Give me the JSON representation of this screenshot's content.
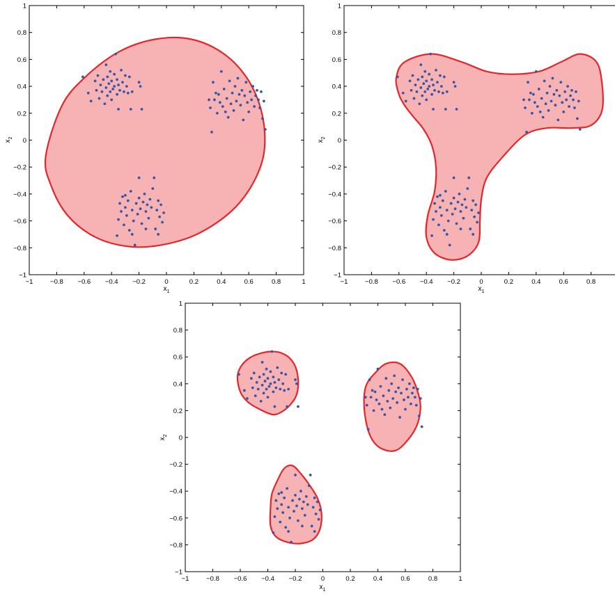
{
  "colors": {
    "region_fill": "#f7b2b4",
    "region_stroke": "#e4262b",
    "point": "#3a55a8"
  },
  "clusters": [
    {
      "name": "upper-left",
      "points": [
        [
          -0.61,
          0.47
        ],
        [
          -0.57,
          0.35
        ],
        [
          -0.55,
          0.29
        ],
        [
          -0.52,
          0.44
        ],
        [
          -0.51,
          0.37
        ],
        [
          -0.5,
          0.48
        ],
        [
          -0.49,
          0.31
        ],
        [
          -0.48,
          0.41
        ],
        [
          -0.47,
          0.36
        ],
        [
          -0.46,
          0.45
        ],
        [
          -0.45,
          0.27
        ],
        [
          -0.44,
          0.39
        ],
        [
          -0.43,
          0.33
        ],
        [
          -0.43,
          0.47
        ],
        [
          -0.42,
          0.42
        ],
        [
          -0.41,
          0.36
        ],
        [
          -0.4,
          0.44
        ],
        [
          -0.4,
          0.3
        ],
        [
          -0.39,
          0.38
        ],
        [
          -0.38,
          0.49
        ],
        [
          -0.38,
          0.4
        ],
        [
          -0.37,
          0.64
        ],
        [
          -0.36,
          0.34
        ],
        [
          -0.36,
          0.45
        ],
        [
          -0.35,
          0.41
        ],
        [
          -0.35,
          0.23
        ],
        [
          -0.34,
          0.37
        ],
        [
          -0.33,
          0.52
        ],
        [
          -0.32,
          0.43
        ],
        [
          -0.31,
          0.36
        ],
        [
          -0.3,
          0.48
        ],
        [
          -0.29,
          0.4
        ],
        [
          -0.28,
          0.35
        ],
        [
          -0.27,
          0.47
        ],
        [
          -0.26,
          0.23
        ],
        [
          -0.25,
          0.36
        ],
        [
          -0.2,
          0.43
        ],
        [
          -0.19,
          0.4
        ],
        [
          -0.18,
          0.23
        ],
        [
          -0.44,
          0.56
        ],
        [
          -0.41,
          0.51
        ]
      ]
    },
    {
      "name": "upper-right",
      "points": [
        [
          0.31,
          0.3
        ],
        [
          0.32,
          0.24
        ],
        [
          0.33,
          0.06
        ],
        [
          0.34,
          0.43
        ],
        [
          0.35,
          0.3
        ],
        [
          0.37,
          0.2
        ],
        [
          0.38,
          0.34
        ],
        [
          0.39,
          0.28
        ],
        [
          0.4,
          0.51
        ],
        [
          0.41,
          0.25
        ],
        [
          0.42,
          0.38
        ],
        [
          0.43,
          0.21
        ],
        [
          0.44,
          0.31
        ],
        [
          0.45,
          0.17
        ],
        [
          0.46,
          0.44
        ],
        [
          0.47,
          0.27
        ],
        [
          0.48,
          0.35
        ],
        [
          0.49,
          0.22
        ],
        [
          0.5,
          0.4
        ],
        [
          0.51,
          0.29
        ],
        [
          0.52,
          0.46
        ],
        [
          0.53,
          0.34
        ],
        [
          0.54,
          0.26
        ],
        [
          0.55,
          0.37
        ],
        [
          0.56,
          0.15
        ],
        [
          0.57,
          0.33
        ],
        [
          0.58,
          0.43
        ],
        [
          0.59,
          0.28
        ],
        [
          0.6,
          0.21
        ],
        [
          0.61,
          0.36
        ],
        [
          0.62,
          0.3
        ],
        [
          0.63,
          0.4
        ],
        [
          0.64,
          0.25
        ],
        [
          0.65,
          0.33
        ],
        [
          0.66,
          0.37
        ],
        [
          0.67,
          0.3
        ],
        [
          0.68,
          0.24
        ],
        [
          0.69,
          0.36
        ],
        [
          0.7,
          0.16
        ],
        [
          0.71,
          0.29
        ],
        [
          0.72,
          0.08
        ],
        [
          0.36,
          0.35
        ]
      ]
    },
    {
      "name": "bottom",
      "points": [
        [
          -0.36,
          -0.71
        ],
        [
          -0.35,
          -0.59
        ],
        [
          -0.34,
          -0.47
        ],
        [
          -0.33,
          -0.53
        ],
        [
          -0.32,
          -0.42
        ],
        [
          -0.31,
          -0.63
        ],
        [
          -0.3,
          -0.5
        ],
        [
          -0.29,
          -0.56
        ],
        [
          -0.28,
          -0.45
        ],
        [
          -0.27,
          -0.67
        ],
        [
          -0.26,
          -0.38
        ],
        [
          -0.25,
          -0.52
        ],
        [
          -0.24,
          -0.6
        ],
        [
          -0.23,
          -0.78
        ],
        [
          -0.22,
          -0.47
        ],
        [
          -0.21,
          -0.55
        ],
        [
          -0.2,
          -0.28
        ],
        [
          -0.2,
          -0.43
        ],
        [
          -0.19,
          -0.51
        ],
        [
          -0.18,
          -0.62
        ],
        [
          -0.17,
          -0.46
        ],
        [
          -0.16,
          -0.4
        ],
        [
          -0.15,
          -0.53
        ],
        [
          -0.14,
          -0.48
        ],
        [
          -0.13,
          -0.58
        ],
        [
          -0.12,
          -0.44
        ],
        [
          -0.11,
          -0.5
        ],
        [
          -0.1,
          -0.36
        ],
        [
          -0.09,
          -0.28
        ],
        [
          -0.08,
          -0.66
        ],
        [
          -0.07,
          -0.52
        ],
        [
          -0.06,
          -0.7
        ],
        [
          -0.05,
          -0.57
        ],
        [
          -0.04,
          -0.48
        ],
        [
          -0.03,
          -0.61
        ],
        [
          -0.02,
          -0.54
        ],
        [
          -0.25,
          -0.7
        ],
        [
          -0.15,
          -0.66
        ],
        [
          -0.3,
          -0.41
        ],
        [
          -0.06,
          -0.45
        ]
      ]
    }
  ],
  "chart_data": [
    {
      "type": "scatter",
      "panel": "top-left",
      "xlabel": "x",
      "xlabel_sub": "1",
      "ylabel": "x",
      "ylabel_sub": "2",
      "xlim": [
        -1,
        1
      ],
      "ylim": [
        -1,
        1
      ],
      "x_ticks": [
        "−1",
        "−0.8",
        "−0.6",
        "−0.4",
        "−0.2",
        "0",
        "0.2",
        "0.4",
        "0.6",
        "0.8",
        "1"
      ],
      "y_ticks": [
        "−1",
        "−0.8",
        "−0.6",
        "−0.4",
        "−0.2",
        "0",
        "0.2",
        "0.4",
        "0.6",
        "0.8",
        "1"
      ],
      "region": {
        "shape": "ellipse",
        "boundary": [
          [
            -0.88,
            -0.12
          ],
          [
            -0.84,
            -0.34
          ],
          [
            -0.72,
            -0.56
          ],
          [
            -0.52,
            -0.72
          ],
          [
            -0.28,
            -0.79
          ],
          [
            -0.04,
            -0.78
          ],
          [
            0.22,
            -0.7
          ],
          [
            0.46,
            -0.54
          ],
          [
            0.62,
            -0.34
          ],
          [
            0.71,
            -0.1
          ],
          [
            0.7,
            0.18
          ],
          [
            0.6,
            0.44
          ],
          [
            0.42,
            0.64
          ],
          [
            0.18,
            0.75
          ],
          [
            -0.08,
            0.75
          ],
          [
            -0.34,
            0.66
          ],
          [
            -0.58,
            0.48
          ],
          [
            -0.76,
            0.26
          ]
        ]
      }
    },
    {
      "type": "scatter",
      "panel": "top-right",
      "xlabel": "x",
      "xlabel_sub": "1",
      "ylabel": "x",
      "ylabel_sub": "2",
      "xlim": [
        -1,
        1
      ],
      "ylim": [
        -1,
        1
      ],
      "x_ticks": [
        "−1",
        "−0.8",
        "−0.6",
        "−0.4",
        "−0.2",
        "0",
        "0.2",
        "0.4",
        "0.6",
        "0.8"
      ],
      "y_ticks": [
        "−1",
        "−0.8",
        "−0.6",
        "−0.4",
        "−0.2",
        "0",
        "0.2",
        "0.4",
        "0.6",
        "0.8",
        "1"
      ],
      "region": {
        "shape": "three-lobed",
        "boundary": [
          [
            -0.62,
            0.46
          ],
          [
            -0.6,
            0.34
          ],
          [
            -0.56,
            0.26
          ],
          [
            -0.5,
            0.18
          ],
          [
            -0.42,
            0.08
          ],
          [
            -0.36,
            -0.04
          ],
          [
            -0.33,
            -0.2
          ],
          [
            -0.34,
            -0.38
          ],
          [
            -0.39,
            -0.56
          ],
          [
            -0.4,
            -0.72
          ],
          [
            -0.34,
            -0.84
          ],
          [
            -0.22,
            -0.89
          ],
          [
            -0.1,
            -0.86
          ],
          [
            -0.02,
            -0.76
          ],
          [
            -0.01,
            -0.6
          ],
          [
            0.0,
            -0.44
          ],
          [
            0.04,
            -0.28
          ],
          [
            0.16,
            -0.12
          ],
          [
            0.32,
            0.04
          ],
          [
            0.48,
            0.09
          ],
          [
            0.66,
            0.09
          ],
          [
            0.8,
            0.11
          ],
          [
            0.88,
            0.22
          ],
          [
            0.88,
            0.42
          ],
          [
            0.84,
            0.58
          ],
          [
            0.72,
            0.64
          ],
          [
            0.58,
            0.58
          ],
          [
            0.42,
            0.51
          ],
          [
            0.22,
            0.49
          ],
          [
            0.04,
            0.51
          ],
          [
            -0.14,
            0.58
          ],
          [
            -0.36,
            0.64
          ],
          [
            -0.56,
            0.58
          ]
        ]
      }
    },
    {
      "type": "scatter",
      "panel": "bottom",
      "xlabel": "x",
      "xlabel_sub": "1",
      "ylabel": "x",
      "ylabel_sub": "2",
      "xlim": [
        -1,
        1
      ],
      "ylim": [
        -1,
        1
      ],
      "x_ticks": [
        "−1",
        "−0.8",
        "−0.6",
        "−0.4",
        "−0.2",
        "0",
        "0.2",
        "0.4",
        "0.6",
        "0.8",
        "1"
      ],
      "y_ticks": [
        "−1",
        "−0.8",
        "−0.6",
        "−0.4",
        "−0.2",
        "0",
        "0.2",
        "0.4",
        "0.6",
        "0.8",
        "1"
      ],
      "regions": [
        {
          "shape": "blob-upper-left",
          "boundary": [
            [
              -0.62,
              0.46
            ],
            [
              -0.6,
              0.34
            ],
            [
              -0.54,
              0.26
            ],
            [
              -0.44,
              0.2
            ],
            [
              -0.36,
              0.17
            ],
            [
              -0.3,
              0.19
            ],
            [
              -0.24,
              0.24
            ],
            [
              -0.19,
              0.32
            ],
            [
              -0.18,
              0.44
            ],
            [
              -0.21,
              0.55
            ],
            [
              -0.28,
              0.62
            ],
            [
              -0.38,
              0.64
            ],
            [
              -0.5,
              0.61
            ],
            [
              -0.58,
              0.55
            ]
          ]
        },
        {
          "shape": "blob-upper-right",
          "boundary": [
            [
              0.3,
              0.3
            ],
            [
              0.31,
              0.14
            ],
            [
              0.35,
              0.0
            ],
            [
              0.42,
              -0.08
            ],
            [
              0.52,
              -0.1
            ],
            [
              0.6,
              -0.04
            ],
            [
              0.68,
              0.08
            ],
            [
              0.71,
              0.22
            ],
            [
              0.69,
              0.34
            ],
            [
              0.64,
              0.46
            ],
            [
              0.56,
              0.55
            ],
            [
              0.46,
              0.55
            ],
            [
              0.38,
              0.48
            ],
            [
              0.32,
              0.4
            ]
          ]
        },
        {
          "shape": "blob-bottom",
          "boundary": [
            [
              -0.38,
              -0.52
            ],
            [
              -0.38,
              -0.66
            ],
            [
              -0.34,
              -0.74
            ],
            [
              -0.26,
              -0.78
            ],
            [
              -0.16,
              -0.79
            ],
            [
              -0.07,
              -0.76
            ],
            [
              -0.02,
              -0.68
            ],
            [
              -0.01,
              -0.56
            ],
            [
              -0.04,
              -0.45
            ],
            [
              -0.1,
              -0.35
            ],
            [
              -0.16,
              -0.27
            ],
            [
              -0.22,
              -0.21
            ],
            [
              -0.28,
              -0.23
            ],
            [
              -0.33,
              -0.32
            ],
            [
              -0.37,
              -0.42
            ]
          ]
        }
      ]
    }
  ]
}
